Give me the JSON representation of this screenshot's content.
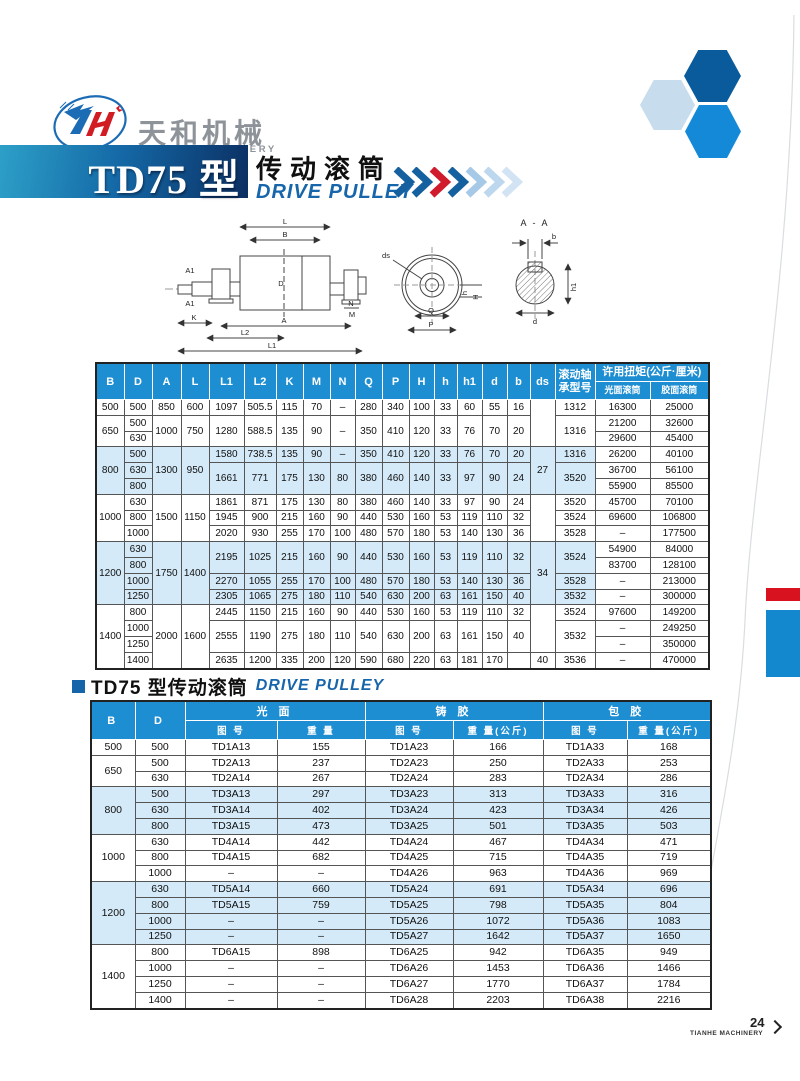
{
  "brand": {
    "logo_cn": "天和机械",
    "logo_en": "TIANHE MACHINERY"
  },
  "banner": {
    "model": "TD75 型",
    "title_cn": "传动滚筒",
    "title_en": "DRIVE PULLEY"
  },
  "diagram": {
    "labels": {
      "L": "L",
      "B": "B",
      "A1": "A1",
      "D": "D",
      "N": "N",
      "M": "M",
      "K": "K",
      "A": "A",
      "L2": "L2",
      "L1": "L1",
      "ds": "ds",
      "h": "h",
      "H": "H",
      "Q": "Q",
      "P": "P",
      "section": "A - A",
      "b": "b",
      "h1": "h1",
      "d": "d"
    }
  },
  "table1": {
    "headers": {
      "cols": [
        "B",
        "D",
        "A",
        "L",
        "L1",
        "L2",
        "K",
        "M",
        "N",
        "Q",
        "P",
        "H",
        "h",
        "h1",
        "d",
        "b",
        "ds"
      ],
      "bearing_line1": "滚动轴",
      "bearing_line2": "承型号",
      "torque_title": "许用扭矩(公斤·厘米)",
      "torque_smooth": "光面滚筒",
      "torque_rubber": "胶面滚筒"
    },
    "rows": [
      {
        "cells": [
          500,
          500,
          850,
          600,
          1097,
          505.5,
          115,
          70,
          "–",
          280,
          340,
          100,
          33,
          60,
          55,
          16,
          {
            "t": "",
            "rs": 3
          },
          1312,
          16300,
          25000
        ]
      },
      {
        "cells": [
          {
            "t": 650,
            "rs": 2
          },
          500,
          {
            "t": 1000,
            "rs": 2
          },
          {
            "t": 750,
            "rs": 2
          },
          {
            "t": 1280,
            "rs": 2
          },
          {
            "t": 588.5,
            "rs": 2
          },
          {
            "t": 135,
            "rs": 2
          },
          {
            "t": 90,
            "rs": 2
          },
          {
            "t": "–",
            "rs": 2
          },
          {
            "t": 350,
            "rs": 2
          },
          {
            "t": 410,
            "rs": 2
          },
          {
            "t": 120,
            "rs": 2
          },
          {
            "t": 33,
            "rs": 2
          },
          {
            "t": 76,
            "rs": 2
          },
          {
            "t": 70,
            "rs": 2
          },
          {
            "t": 20,
            "rs": 2
          },
          {
            "t": 1316,
            "rs": 2
          },
          21200,
          32600
        ]
      },
      {
        "cells": [
          630,
          29600,
          45400
        ]
      },
      {
        "c": "sh",
        "cells": [
          {
            "t": 800,
            "rs": 3
          },
          500,
          {
            "t": 1300,
            "rs": 3
          },
          {
            "t": 950,
            "rs": 3
          },
          1580,
          738.5,
          135,
          90,
          "–",
          350,
          410,
          120,
          33,
          76,
          70,
          20,
          {
            "t": 27,
            "rs": 3
          },
          1316,
          {
            "t": 26200,
            "c": "tq"
          },
          {
            "t": 40100,
            "c": "tq"
          }
        ]
      },
      {
        "c": "sh",
        "cells": [
          630,
          {
            "t": 1661,
            "rs": 2
          },
          {
            "t": 771,
            "rs": 2
          },
          {
            "t": 175,
            "rs": 2
          },
          {
            "t": 130,
            "rs": 2
          },
          {
            "t": 80,
            "rs": 2
          },
          {
            "t": 380,
            "rs": 2
          },
          {
            "t": 460,
            "rs": 2
          },
          {
            "t": 140,
            "rs": 2
          },
          {
            "t": 33,
            "rs": 2
          },
          {
            "t": 97,
            "rs": 2
          },
          {
            "t": 90,
            "rs": 2
          },
          {
            "t": 24,
            "rs": 2
          },
          {
            "t": 3520,
            "rs": 2
          },
          {
            "t": 36700,
            "c": "tq"
          },
          {
            "t": 56100,
            "c": "tq"
          }
        ]
      },
      {
        "c": "sh",
        "cells": [
          800,
          {
            "t": 55900,
            "c": "tq"
          },
          {
            "t": 85500,
            "c": "tq"
          }
        ]
      },
      {
        "cells": [
          {
            "t": 1000,
            "rs": 3
          },
          630,
          {
            "t": 1500,
            "rs": 3
          },
          {
            "t": 1150,
            "rs": 3
          },
          1861,
          871,
          175,
          130,
          80,
          380,
          460,
          140,
          33,
          97,
          90,
          24,
          {
            "t": "",
            "rs": 3
          },
          3520,
          45700,
          70100
        ]
      },
      {
        "cells": [
          800,
          1945,
          900,
          215,
          160,
          90,
          440,
          530,
          160,
          53,
          119,
          110,
          32,
          3524,
          69600,
          106800
        ]
      },
      {
        "cells": [
          1000,
          2020,
          930,
          255,
          170,
          100,
          480,
          570,
          180,
          53,
          140,
          130,
          36,
          3528,
          "–",
          177500
        ]
      },
      {
        "c": "sh",
        "cells": [
          {
            "t": 1200,
            "rs": 4
          },
          630,
          {
            "t": 1750,
            "rs": 4
          },
          {
            "t": 1400,
            "rs": 4
          },
          {
            "t": 2195,
            "rs": 2
          },
          {
            "t": 1025,
            "rs": 2
          },
          {
            "t": 215,
            "rs": 2
          },
          {
            "t": 160,
            "rs": 2
          },
          {
            "t": 90,
            "rs": 2
          },
          {
            "t": 440,
            "rs": 2
          },
          {
            "t": 530,
            "rs": 2
          },
          {
            "t": 160,
            "rs": 2
          },
          {
            "t": 53,
            "rs": 2
          },
          {
            "t": 119,
            "rs": 2
          },
          {
            "t": 110,
            "rs": 2
          },
          {
            "t": 32,
            "rs": 2
          },
          {
            "t": 34,
            "rs": 4
          },
          {
            "t": 3524,
            "rs": 2
          },
          {
            "t": 54900,
            "c": "tq"
          },
          {
            "t": 84000,
            "c": "tq"
          }
        ]
      },
      {
        "c": "sh",
        "cells": [
          800,
          {
            "t": 83700,
            "c": "tq"
          },
          {
            "t": 128100,
            "c": "tq"
          }
        ]
      },
      {
        "c": "sh",
        "cells": [
          1000,
          2270,
          1055,
          255,
          170,
          100,
          480,
          570,
          180,
          53,
          140,
          130,
          36,
          3528,
          {
            "t": "–",
            "c": "tq"
          },
          {
            "t": 213000,
            "c": "tq"
          }
        ]
      },
      {
        "c": "sh",
        "cells": [
          1250,
          2305,
          1065,
          275,
          180,
          110,
          540,
          630,
          200,
          63,
          161,
          150,
          40,
          3532,
          {
            "t": "–",
            "c": "tq"
          },
          {
            "t": 300000,
            "c": "tq"
          }
        ]
      },
      {
        "cells": [
          {
            "t": 1400,
            "rs": 4
          },
          800,
          {
            "t": 2000,
            "rs": 4
          },
          {
            "t": 1600,
            "rs": 4
          },
          2445,
          1150,
          215,
          160,
          90,
          440,
          530,
          160,
          53,
          119,
          110,
          32,
          {
            "t": "",
            "rs": 3
          },
          3524,
          97600,
          149200
        ]
      },
      {
        "cells": [
          1000,
          {
            "t": 2555,
            "rs": 2
          },
          {
            "t": 1190,
            "rs": 2
          },
          {
            "t": 275,
            "rs": 2
          },
          {
            "t": 180,
            "rs": 2
          },
          {
            "t": 110,
            "rs": 2
          },
          {
            "t": 540,
            "rs": 2
          },
          {
            "t": 630,
            "rs": 2
          },
          {
            "t": 200,
            "rs": 2
          },
          {
            "t": 63,
            "rs": 2
          },
          {
            "t": 161,
            "rs": 2
          },
          {
            "t": 150,
            "rs": 2
          },
          {
            "t": 40,
            "rs": 2
          },
          {
            "t": 3532,
            "rs": 2
          },
          "–",
          249250
        ]
      },
      {
        "cells": [
          1250,
          "–",
          350000
        ]
      },
      {
        "cells": [
          1400,
          2635,
          1200,
          335,
          200,
          120,
          590,
          680,
          220,
          63,
          181,
          170,
          "",
          40,
          3536,
          "–",
          470000
        ]
      }
    ]
  },
  "section2": {
    "title_cn": "TD75 型传动滚筒",
    "title_en": "DRIVE PULLEY"
  },
  "table2": {
    "headers": {
      "b": "B",
      "d": "D",
      "smooth": "光 面",
      "cast": "铸 胶",
      "lagged": "包 胶",
      "drawing_no": "图 号",
      "weight": "重 量",
      "weight_kg": "重 量(公斤)"
    },
    "rows": [
      {
        "cells": [
          500,
          500,
          "TD1A13",
          155,
          "TD1A23",
          166,
          "TD1A33",
          168
        ]
      },
      {
        "cells": [
          {
            "t": 650,
            "rs": 2
          },
          500,
          "TD2A13",
          237,
          "TD2A23",
          250,
          "TD2A33",
          253
        ]
      },
      {
        "cells": [
          630,
          "TD2A14",
          267,
          "TD2A24",
          283,
          "TD2A34",
          286
        ]
      },
      {
        "c": "sh",
        "cells": [
          {
            "t": 800,
            "rs": 3
          },
          500,
          "TD3A13",
          297,
          "TD3A23",
          313,
          "TD3A33",
          316
        ]
      },
      {
        "c": "sh",
        "cells": [
          630,
          "TD3A14",
          402,
          "TD3A24",
          423,
          "TD3A34",
          426
        ]
      },
      {
        "c": "sh",
        "cells": [
          800,
          "TD3A15",
          473,
          "TD3A25",
          501,
          "TD3A35",
          503
        ]
      },
      {
        "cells": [
          {
            "t": 1000,
            "rs": 3
          },
          630,
          "TD4A14",
          442,
          "TD4A24",
          467,
          "TD4A34",
          471
        ]
      },
      {
        "cells": [
          800,
          "TD4A15",
          682,
          "TD4A25",
          715,
          "TD4A35",
          719
        ]
      },
      {
        "cells": [
          1000,
          "–",
          "–",
          "TD4A26",
          963,
          "TD4A36",
          969
        ]
      },
      {
        "c": "sh",
        "cells": [
          {
            "t": 1200,
            "rs": 4
          },
          630,
          "TD5A14",
          660,
          "TD5A24",
          691,
          "TD5A34",
          696
        ]
      },
      {
        "c": "sh",
        "cells": [
          800,
          "TD5A15",
          759,
          "TD5A25",
          798,
          "TD5A35",
          804
        ]
      },
      {
        "c": "sh",
        "cells": [
          1000,
          "–",
          "–",
          "TD5A26",
          1072,
          "TD5A36",
          1083
        ]
      },
      {
        "c": "sh",
        "cells": [
          1250,
          "–",
          "–",
          "TD5A27",
          1642,
          "TD5A37",
          1650
        ]
      },
      {
        "cells": [
          {
            "t": 1400,
            "rs": 4
          },
          800,
          "TD6A15",
          898,
          "TD6A25",
          942,
          "TD6A35",
          949
        ]
      },
      {
        "cells": [
          1000,
          "–",
          "–",
          "TD6A26",
          1453,
          "TD6A36",
          1466
        ]
      },
      {
        "cells": [
          1250,
          "–",
          "–",
          "TD6A27",
          1770,
          "TD6A37",
          1784
        ]
      },
      {
        "cells": [
          1400,
          "–",
          "–",
          "TD6A28",
          2203,
          "TD6A38",
          2216
        ]
      }
    ]
  },
  "footer": {
    "page": "24",
    "brand": "TIANHE MACHINERY"
  },
  "colors": {
    "header_blue": "#1e8ed2",
    "row_highlight": "#d5eaf8",
    "accent_red": "#d8131f",
    "accent_blue": "#1488cf",
    "navy": "#0b2f62",
    "title_blue": "#1766ab"
  }
}
